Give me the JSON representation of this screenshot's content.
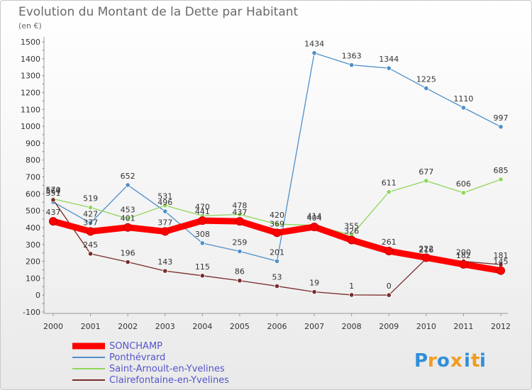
{
  "chart_data": {
    "type": "line",
    "title": "Evolution du Montant de la Dette par Habitant",
    "subtitle": "(en €)",
    "categories": [
      "2000",
      "2001",
      "2002",
      "2003",
      "2004",
      "2005",
      "2006",
      "2007",
      "2008",
      "2009",
      "2010",
      "2011",
      "2012"
    ],
    "y_ticks": [
      "-100",
      "0",
      "100",
      "200",
      "300",
      "400",
      "500",
      "600",
      "700",
      "800",
      "900",
      "1000",
      "1100",
      "1200",
      "1300",
      "1400",
      "1500"
    ],
    "ylim": [
      -100,
      1500
    ],
    "grid": false,
    "legend_position": "bottom-left",
    "series": [
      {
        "name": "SONCHAMP",
        "color": "#ff0000",
        "values": [
          437,
          377,
          401,
          377,
          441,
          437,
          369,
          404,
          326,
          261,
          222,
          182,
          145
        ]
      },
      {
        "name": "Ponthévrard",
        "color": "#4f8fc9",
        "values": [
          551,
          427,
          652,
          496,
          308,
          259,
          201,
          1434,
          1363,
          1344,
          1225,
          1110,
          997
        ]
      },
      {
        "name": "Saint-Arnoult-en-Yvelines",
        "color": "#8fd65b",
        "values": [
          570,
          519,
          453,
          531,
          470,
          478,
          420,
          414,
          355,
          611,
          677,
          606,
          685
        ]
      },
      {
        "name": "Clairefontaine-en-Yvelines",
        "color": "#7a2b2b",
        "values": [
          564,
          245,
          196,
          143,
          115,
          86,
          53,
          19,
          1,
          0,
          216,
          200,
          181
        ]
      }
    ]
  },
  "logo": {
    "text": "Proxiti",
    "letters": [
      "P",
      "r",
      "o",
      "x",
      "i",
      "t",
      "i"
    ],
    "colors": [
      "#2f8fd8",
      "#f29b1f",
      "#2f8fd8",
      "#f29b1f",
      "#2f8fd8",
      "#f29b1f",
      "#2f8fd8"
    ]
  }
}
